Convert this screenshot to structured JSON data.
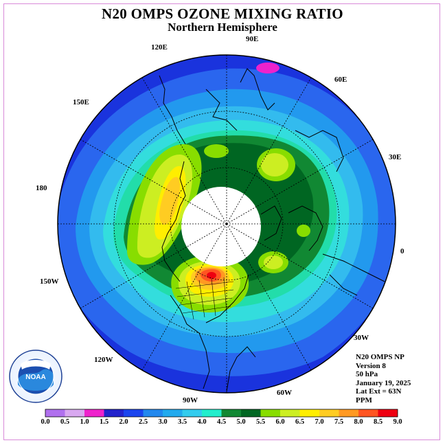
{
  "title": "N20 OMPS OZONE MIXING RATIO",
  "subtitle": "Northern Hemisphere",
  "longitude_labels": {
    "e90": "90E",
    "e120": "120E",
    "e60": "60E",
    "e150": "150E",
    "e30": "30E",
    "d180": "180",
    "d0": "0",
    "w150": "150W",
    "w30": "30W",
    "w120": "120W",
    "w60": "60W",
    "w90": "90W"
  },
  "info": {
    "satellite": "N20 OMPS NP",
    "version": "Version 8",
    "level": "50 hPa",
    "date": "January 19, 2025",
    "lat_ext": "Lat Ext = 63N",
    "units": "PPM"
  },
  "colorbar": {
    "labels": [
      "0.0",
      "0.5",
      "1.0",
      "1.5",
      "2.0",
      "2.5",
      "3.0",
      "3.5",
      "4.0",
      "4.5",
      "5.0",
      "5.5",
      "6.0",
      "6.5",
      "7.0",
      "7.5",
      "8.0",
      "8.5",
      "9.0"
    ],
    "colors": [
      "#b070ee",
      "#d8a8f0",
      "#ee22cc",
      "#2222cc",
      "#1a44ee",
      "#2288ee",
      "#22aaee",
      "#33ccee",
      "#22eecc",
      "#118833",
      "#006622",
      "#88dd00",
      "#ccee22",
      "#ffee00",
      "#ffcc22",
      "#ff9922",
      "#ff5522",
      "#ee0011",
      "#885544"
    ]
  },
  "logo": {
    "text": "NOAA"
  }
}
